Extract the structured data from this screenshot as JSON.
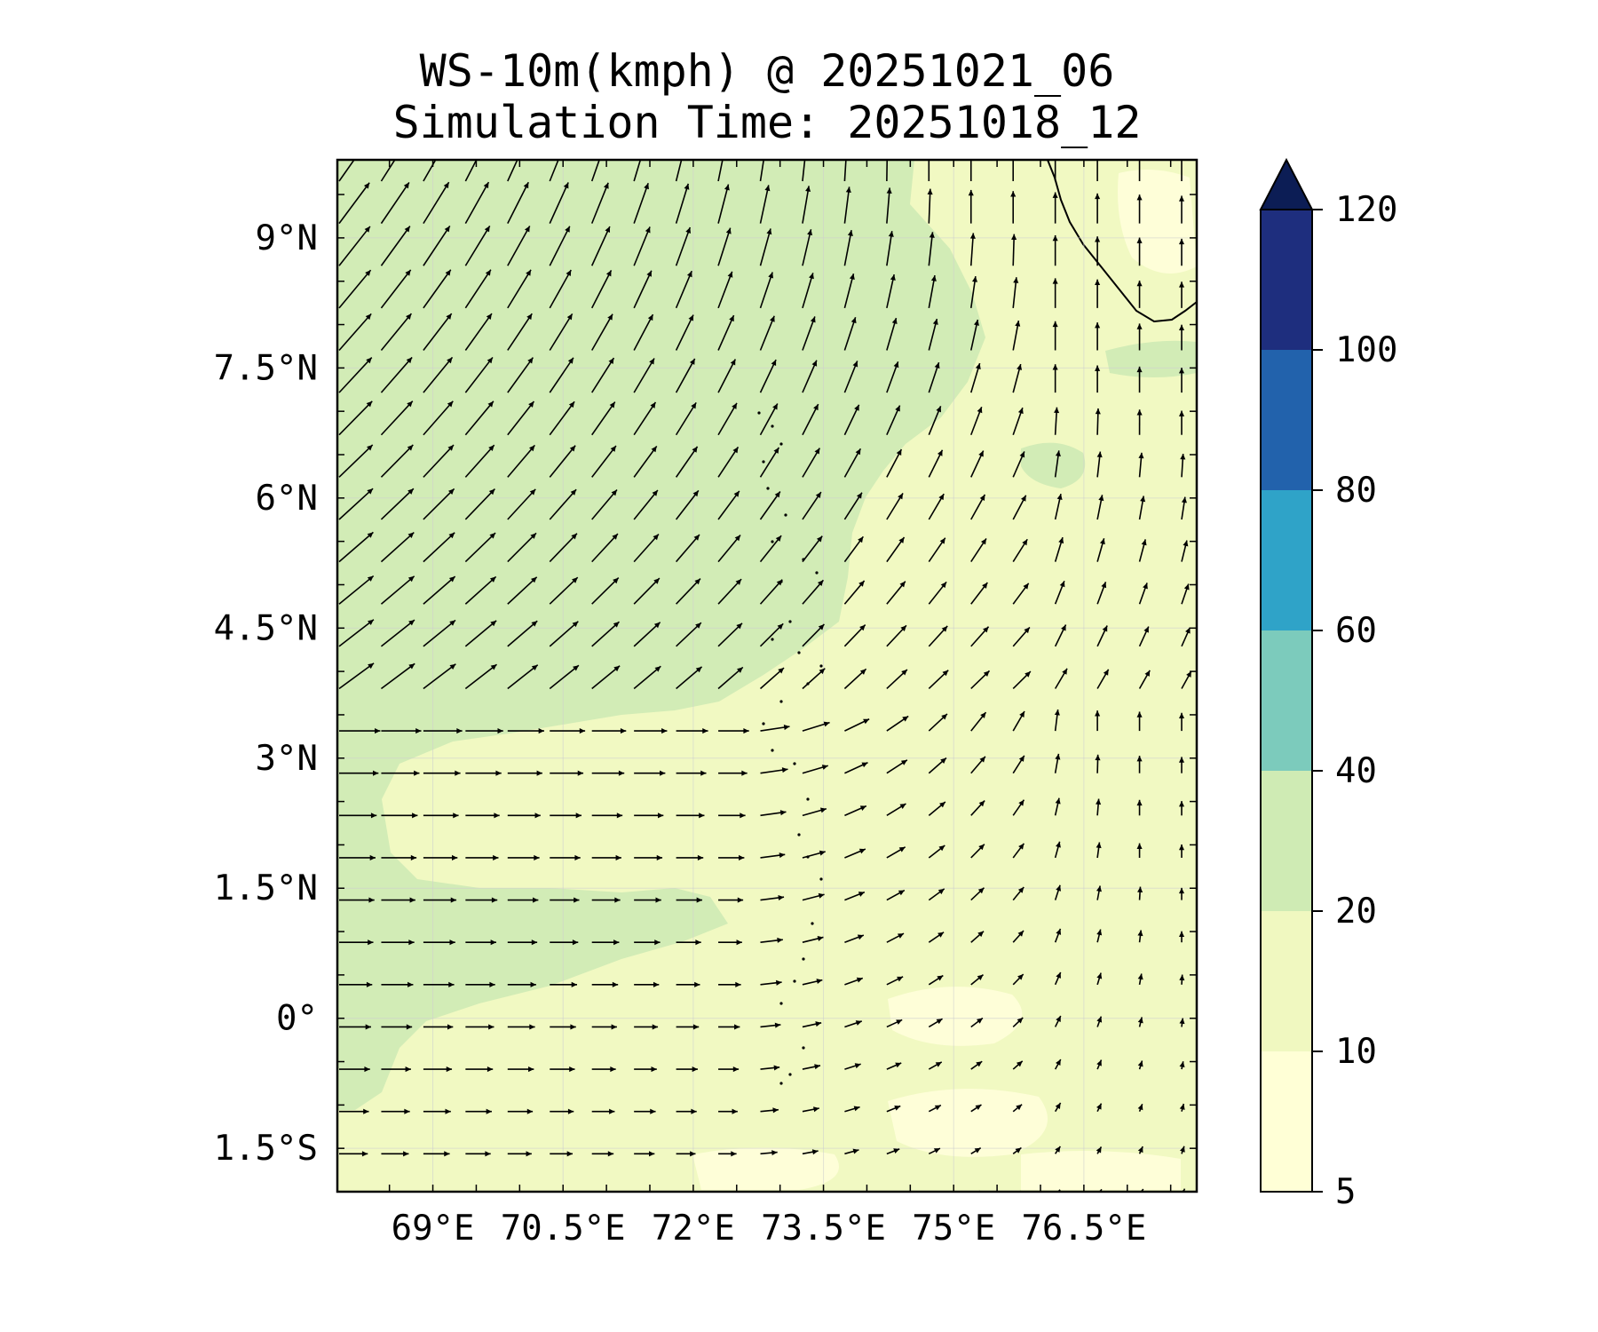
{
  "title": {
    "line1": "WS-10m(kmph) @ 20251021_06",
    "line2": "Simulation Time: 20251018_12"
  },
  "map": {
    "extent": {
      "lon_min": 67.9,
      "lon_max": 77.8,
      "lat_min": -2.0,
      "lat_max": 9.9
    },
    "lon_ticks": [
      {
        "value": 69.0,
        "label": "69°E"
      },
      {
        "value": 70.5,
        "label": "70.5°E"
      },
      {
        "value": 72.0,
        "label": "72°E"
      },
      {
        "value": 73.5,
        "label": "73.5°E"
      },
      {
        "value": 75.0,
        "label": "75°E"
      },
      {
        "value": 76.5,
        "label": "76.5°E"
      }
    ],
    "lat_ticks": [
      {
        "value": 9.0,
        "label": "9°N"
      },
      {
        "value": 7.5,
        "label": "7.5°N"
      },
      {
        "value": 6.0,
        "label": "6°N"
      },
      {
        "value": 4.5,
        "label": "4.5°N"
      },
      {
        "value": 3.0,
        "label": "3°N"
      },
      {
        "value": 1.5,
        "label": "1.5°N"
      },
      {
        "value": 0.0,
        "label": "0°"
      },
      {
        "value": -1.5,
        "label": "1.5°S"
      }
    ],
    "gridlines": true,
    "fill_colors": {
      "zone_10_20": "#f1f9c2",
      "zone_20_40": "#d2ecb6",
      "zone_5_10": "#fefed8"
    }
  },
  "colorbar": {
    "position": "right",
    "extend": "max",
    "levels": [
      {
        "value": 5,
        "label": "5"
      },
      {
        "value": 10,
        "label": "10"
      },
      {
        "value": 20,
        "label": "20"
      },
      {
        "value": 40,
        "label": "40"
      },
      {
        "value": 60,
        "label": "60"
      },
      {
        "value": 80,
        "label": "80"
      },
      {
        "value": 100,
        "label": "100"
      },
      {
        "value": 120,
        "label": "120"
      }
    ],
    "colors": [
      "#ffffd6",
      "#f0f8c0",
      "#cfebb4",
      "#7ccbbc",
      "#2fa3c8",
      "#2262ac",
      "#1e2e7e"
    ],
    "extend_color": "#0c1d55"
  }
}
